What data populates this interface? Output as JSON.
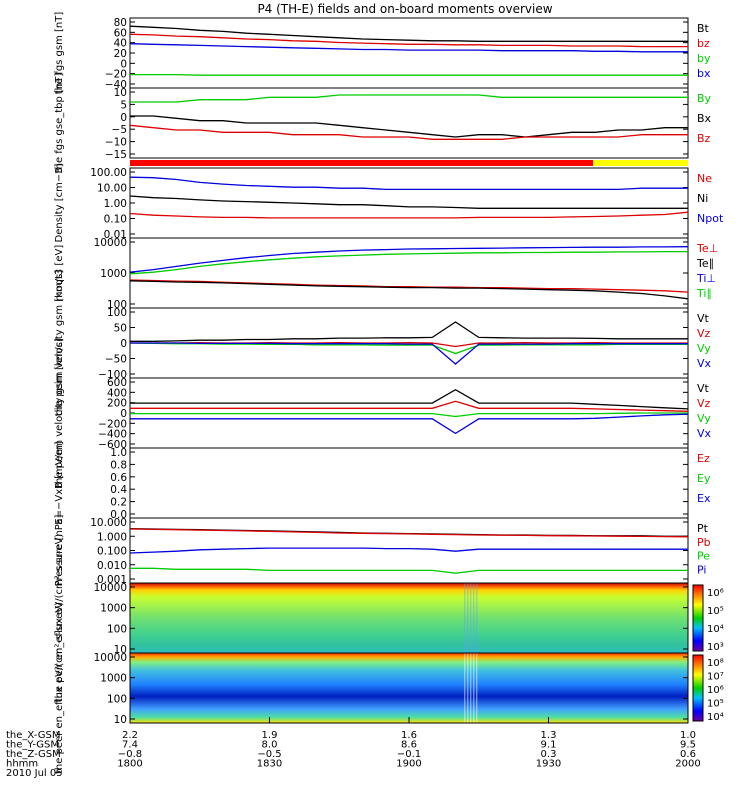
{
  "title": "P4 (TH-E) fields and on-board moments overview",
  "chart_data": [
    {
      "type": "line",
      "ylabel": "the fgs gsm [nT]",
      "yticks": [
        "80",
        "60",
        "40",
        "20",
        "0",
        "−20",
        "−40"
      ],
      "ylim": [
        -40,
        80
      ],
      "series": [
        {
          "name": "Bt",
          "color": "#000000",
          "values": [
            66,
            64,
            62,
            59,
            57,
            54,
            52,
            50,
            48,
            46,
            44,
            43,
            42,
            41,
            41,
            40,
            40,
            40,
            40,
            40,
            40,
            40,
            40,
            40,
            40
          ]
        },
        {
          "name": "bz",
          "color": "#dd0000",
          "values": [
            52,
            51,
            49,
            48,
            46,
            44,
            43,
            41,
            40,
            38,
            37,
            36,
            35,
            35,
            34,
            34,
            33,
            33,
            33,
            32,
            32,
            32,
            31,
            31,
            31
          ]
        },
        {
          "name": "by",
          "color": "#00cc00",
          "values": [
            -17,
            -17,
            -17,
            -18,
            -18,
            -18,
            -18,
            -18,
            -18,
            -18,
            -18,
            -18,
            -18,
            -18,
            -18,
            -18,
            -18,
            -18,
            -18,
            -18,
            -18,
            -18,
            -18,
            -18,
            -18
          ]
        },
        {
          "name": "bx",
          "color": "#0000dd",
          "values": [
            36,
            35,
            34,
            33,
            32,
            31,
            30,
            29,
            28,
            27,
            26,
            26,
            25,
            25,
            25,
            25,
            24,
            24,
            24,
            24,
            23,
            23,
            22,
            22,
            22
          ]
        }
      ]
    },
    {
      "type": "line",
      "ylabel": "the fgs gse_tbp [nT]",
      "yticks": [
        "10",
        "5",
        "0",
        "−5",
        "−10",
        "−15"
      ],
      "ylim": [
        -18,
        12
      ],
      "series": [
        {
          "name": "By",
          "color": "#00cc00",
          "values": [
            6,
            6,
            6,
            7,
            7,
            7,
            8,
            8,
            8,
            9,
            9,
            9,
            9,
            9,
            9,
            9,
            8,
            8,
            8,
            8,
            8,
            8,
            8,
            8,
            8
          ]
        },
        {
          "name": "Bx",
          "color": "#000000",
          "values": [
            0,
            0,
            -1,
            -2,
            -2,
            -3,
            -3,
            -3,
            -3,
            -4,
            -5,
            -6,
            -7,
            -8,
            -9,
            -8,
            -8,
            -9,
            -8,
            -7,
            -7,
            -6,
            -6,
            -5,
            -5
          ]
        },
        {
          "name": "Bz",
          "color": "#dd0000",
          "values": [
            -4,
            -5,
            -6,
            -6,
            -7,
            -7,
            -7,
            -8,
            -8,
            -8,
            -9,
            -9,
            -9,
            -10,
            -10,
            -10,
            -10,
            -9,
            -9,
            -9,
            -9,
            -9,
            -8,
            -8,
            -8
          ]
        }
      ]
    },
    {
      "type": "line",
      "ylabel": "Density [cm−3]",
      "yticks": [
        "100.00",
        "10.00",
        "1.00",
        "0.10",
        "0.01"
      ],
      "log": true,
      "ylim": [
        0.01,
        100
      ],
      "series": [
        {
          "name": "Ne",
          "color": "#dd0000",
          "values": [
            0.25,
            0.2,
            0.18,
            0.16,
            0.15,
            0.15,
            0.14,
            0.14,
            0.14,
            0.14,
            0.14,
            0.14,
            0.14,
            0.14,
            0.14,
            0.15,
            0.15,
            0.15,
            0.15,
            0.16,
            0.17,
            0.18,
            0.2,
            0.22,
            0.3
          ]
        },
        {
          "name": "Ni",
          "color": "#000000",
          "values": [
            2.5,
            2,
            1.8,
            1.5,
            1.3,
            1.2,
            1.1,
            1,
            0.9,
            0.8,
            0.8,
            0.7,
            0.6,
            0.6,
            0.55,
            0.5,
            0.5,
            0.5,
            0.5,
            0.5,
            0.5,
            0.5,
            0.5,
            0.5,
            0.5
          ]
        },
        {
          "name": "Npot",
          "color": "#0000dd",
          "values": [
            30,
            28,
            22,
            15,
            12,
            10,
            9,
            8,
            8,
            7,
            7,
            6,
            6,
            6,
            6,
            6,
            6,
            6,
            6,
            6,
            6,
            6,
            7,
            7,
            7
          ]
        }
      ]
    },
    {
      "type": "line",
      "ylabel": "moqt3 [eV]",
      "yticks": [
        "10000",
        "1000",
        "100"
      ],
      "log": true,
      "ylim": [
        60,
        12000
      ],
      "series": [
        {
          "name": "Te⊥",
          "color": "#dd0000",
          "values": [
            500,
            480,
            460,
            450,
            420,
            400,
            380,
            360,
            340,
            330,
            320,
            300,
            300,
            290,
            290,
            280,
            280,
            270,
            260,
            260,
            250,
            240,
            230,
            220,
            200
          ]
        },
        {
          "name": "Te∥",
          "color": "#000000",
          "values": [
            470,
            450,
            430,
            420,
            400,
            380,
            360,
            340,
            320,
            310,
            300,
            290,
            280,
            280,
            270,
            270,
            260,
            250,
            240,
            230,
            220,
            200,
            180,
            150,
            120
          ]
        },
        {
          "name": "Ti⊥",
          "color": "#0000dd",
          "values": [
            900,
            1100,
            1400,
            1800,
            2200,
            2700,
            3200,
            3700,
            4100,
            4500,
            4800,
            5000,
            5200,
            5300,
            5400,
            5500,
            5600,
            5700,
            5800,
            5900,
            6000,
            6000,
            6100,
            6100,
            6200
          ]
        },
        {
          "name": "Ti∥",
          "color": "#00cc00",
          "values": [
            800,
            900,
            1100,
            1400,
            1700,
            2000,
            2300,
            2600,
            2900,
            3100,
            3300,
            3500,
            3600,
            3700,
            3800,
            3900,
            3900,
            4000,
            4000,
            4100,
            4100,
            4200,
            4200,
            4300,
            4300
          ]
        }
      ]
    },
    {
      "type": "line",
      "ylabel": "the peim velocity gsm [km/s]",
      "yticks": [
        "100",
        "50",
        "0",
        "−50",
        "−100"
      ],
      "ylim": [
        -100,
        100
      ],
      "series": [
        {
          "name": "Vt",
          "color": "#000000",
          "values": [
            5,
            5,
            6,
            8,
            8,
            10,
            10,
            12,
            12,
            14,
            14,
            15,
            15,
            16,
            60,
            16,
            15,
            14,
            14,
            14,
            13,
            12,
            12,
            12,
            12
          ]
        },
        {
          "name": "Vz",
          "color": "#dd0000",
          "values": [
            0,
            0,
            0,
            1,
            0,
            0,
            1,
            0,
            0,
            1,
            0,
            0,
            1,
            0,
            -10,
            0,
            0,
            1,
            0,
            0,
            1,
            0,
            0,
            0,
            0
          ]
        },
        {
          "name": "Vy",
          "color": "#00cc00",
          "values": [
            0,
            -1,
            -2,
            -2,
            -3,
            -3,
            -4,
            -4,
            -5,
            -5,
            -5,
            -6,
            -6,
            -6,
            -30,
            -6,
            -6,
            -5,
            -5,
            -5,
            -5,
            -4,
            -4,
            -4,
            -4
          ]
        },
        {
          "name": "Vx",
          "color": "#0000dd",
          "values": [
            0,
            0,
            0,
            -1,
            -1,
            -1,
            -1,
            -2,
            -2,
            -2,
            -2,
            -2,
            -3,
            -3,
            -60,
            -3,
            -3,
            -3,
            -3,
            -2,
            -2,
            -2,
            -2,
            -2,
            -2
          ]
        }
      ]
    },
    {
      "type": "line",
      "ylabel": "the peem velocity gsm [km/s]",
      "yticks": [
        "600",
        "400",
        "200",
        "0",
        "−200",
        "−400",
        "−600"
      ],
      "ylim": [
        -600,
        600
      ],
      "series": [
        {
          "name": "Vt",
          "color": "#000000",
          "values": [
            170,
            170,
            170,
            170,
            170,
            170,
            170,
            170,
            170,
            170,
            170,
            170,
            170,
            170,
            400,
            170,
            170,
            170,
            170,
            170,
            150,
            130,
            110,
            90,
            70
          ]
        },
        {
          "name": "Vz",
          "color": "#dd0000",
          "values": [
            80,
            80,
            80,
            80,
            80,
            80,
            80,
            80,
            80,
            80,
            80,
            80,
            80,
            80,
            200,
            80,
            80,
            80,
            80,
            80,
            70,
            60,
            50,
            40,
            30
          ]
        },
        {
          "name": "Vy",
          "color": "#00cc00",
          "values": [
            -10,
            -10,
            -10,
            -10,
            -10,
            -10,
            -10,
            -10,
            -10,
            -10,
            -10,
            -10,
            -10,
            -10,
            -60,
            -10,
            -10,
            -10,
            -10,
            -10,
            -10,
            -5,
            0,
            0,
            0
          ]
        },
        {
          "name": "Vx",
          "color": "#0000dd",
          "values": [
            -100,
            -100,
            -100,
            -100,
            -100,
            -100,
            -100,
            -100,
            -100,
            -100,
            -100,
            -100,
            -100,
            -100,
            -350,
            -100,
            -100,
            -100,
            -100,
            -100,
            -90,
            -70,
            -50,
            -30,
            -20
          ]
        }
      ]
    },
    {
      "type": "line",
      "ylabel": "E=−VxB [mV/m]",
      "yticks": [
        "1.0",
        "0.8",
        "0.6",
        "0.4",
        "0.2",
        "0.0"
      ],
      "ylim": [
        0,
        1
      ],
      "series": [
        {
          "name": "Ez",
          "color": "#dd0000",
          "values": []
        },
        {
          "name": "Ey",
          "color": "#00cc00",
          "values": []
        },
        {
          "name": "Ex",
          "color": "#0000dd",
          "values": []
        }
      ]
    },
    {
      "type": "line",
      "ylabel": "Pressure [nPa]",
      "yticks": [
        "10.000",
        "1.000",
        "0.100",
        "0.010",
        "0.001"
      ],
      "log": true,
      "ylim": [
        0.001,
        10
      ],
      "series": [
        {
          "name": "Pt",
          "color": "#000000",
          "values": [
            2.2,
            2.1,
            2,
            1.9,
            1.8,
            1.7,
            1.6,
            1.5,
            1.4,
            1.3,
            1.2,
            1.15,
            1.1,
            1.05,
            1,
            0.95,
            0.9,
            0.9,
            0.85,
            0.85,
            0.8,
            0.8,
            0.8,
            0.75,
            0.75
          ]
        },
        {
          "name": "Pb",
          "color": "#dd0000",
          "values": [
            2.1,
            2,
            1.9,
            1.8,
            1.7,
            1.6,
            1.5,
            1.4,
            1.3,
            1.2,
            1.15,
            1.1,
            1.05,
            1,
            0.95,
            0.9,
            0.88,
            0.85,
            0.82,
            0.8,
            0.78,
            0.76,
            0.74,
            0.72,
            0.7
          ]
        },
        {
          "name": "Pe",
          "color": "#00cc00",
          "values": [
            0.008,
            0.008,
            0.007,
            0.007,
            0.007,
            0.007,
            0.006,
            0.006,
            0.006,
            0.006,
            0.006,
            0.006,
            0.006,
            0.006,
            0.004,
            0.006,
            0.006,
            0.006,
            0.006,
            0.006,
            0.006,
            0.006,
            0.006,
            0.006,
            0.006
          ]
        },
        {
          "name": "Pi",
          "color": "#0000dd",
          "values": [
            0.07,
            0.08,
            0.09,
            0.11,
            0.12,
            0.13,
            0.14,
            0.14,
            0.14,
            0.14,
            0.14,
            0.13,
            0.13,
            0.12,
            0.09,
            0.12,
            0.12,
            0.12,
            0.12,
            0.12,
            0.12,
            0.12,
            0.12,
            0.12,
            0.12
          ]
        }
      ]
    },
    {
      "type": "heatmap",
      "ylabel": "the peir en_eflux eV/(cm²-s-sr-eV)",
      "yticks": [
        "10000",
        "1000",
        "100",
        "10"
      ],
      "colorbar": [
        "10⁶",
        "10⁵",
        "10⁴",
        "10³"
      ]
    },
    {
      "type": "heatmap",
      "ylabel": "the peer en_eflux eV/(cm²-s-sr-eV)",
      "yticks": [
        "10000",
        "1000",
        "100",
        "10"
      ],
      "colorbar": [
        "10⁸",
        "10⁷",
        "10⁶",
        "10⁵",
        "10⁴"
      ]
    }
  ],
  "mode_bar": {
    "segments": [
      {
        "color": "#ff0000",
        "frac": 0.83
      },
      {
        "color": "#ffff00",
        "frac": 0.17
      }
    ]
  },
  "xaxis": {
    "row_labels": [
      "the_X-GSM",
      "the_Y-GSM",
      "the_Z-GSM",
      "hhmm",
      "2010 Jul 05"
    ],
    "columns": [
      [
        "2.2",
        "7.4",
        "−0.8",
        "1800"
      ],
      [
        "1.9",
        "8.0",
        "−0.5",
        "1830"
      ],
      [
        "1.6",
        "8.6",
        "−0.1",
        "1900"
      ],
      [
        "1.3",
        "9.1",
        "0.3",
        "1930"
      ],
      [
        "1.0",
        "9.5",
        "0.6",
        "2000"
      ]
    ]
  }
}
